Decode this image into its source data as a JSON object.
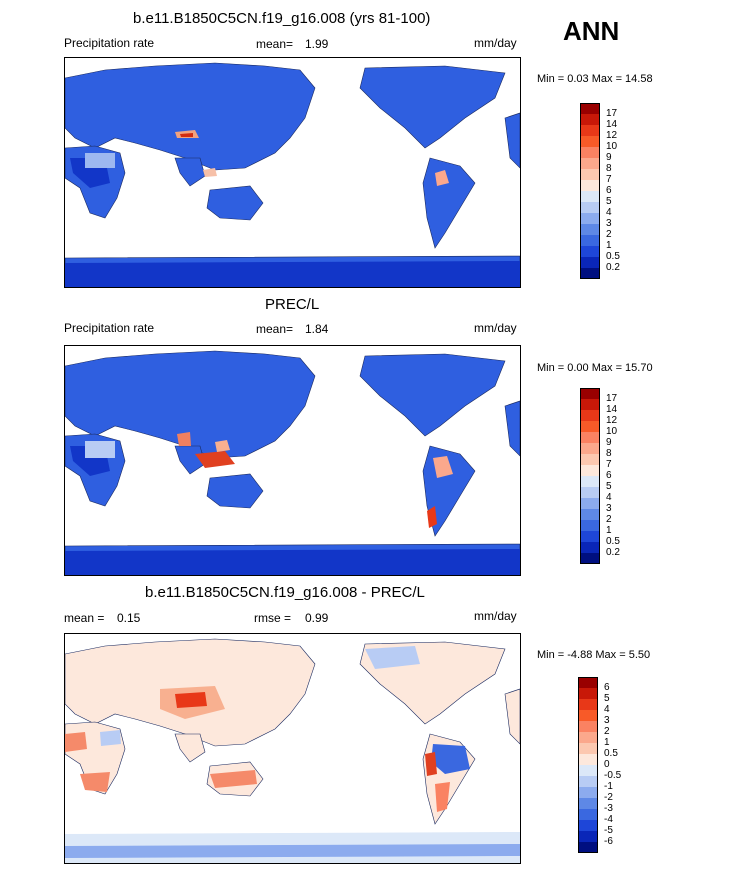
{
  "season": "ANN",
  "panels": [
    {
      "id": "model",
      "title": "b.e11.B1850C5CN.f19_g16.008 (yrs 81-100)",
      "left_label": "Precipitation rate",
      "mean_label": "mean=",
      "mean_value": "1.99",
      "units": "mm/day",
      "minmax": "Min =   0.03 Max =  14.58",
      "levels": [
        "17",
        "14",
        "12",
        "10",
        "9",
        "8",
        "7",
        "6",
        "5",
        "4",
        "3",
        "2",
        "1",
        "0.5",
        "0.2"
      ],
      "colors": [
        "#990000",
        "#c81808",
        "#e83818",
        "#f85a28",
        "#fa8262",
        "#fba88c",
        "#fcc8b0",
        "#fde8dc",
        "#dce8f8",
        "#b8ccf4",
        "#8cabee",
        "#5e88e6",
        "#3a68e0",
        "#1e46d8",
        "#0a26b8",
        "#000f80"
      ]
    },
    {
      "id": "obs",
      "title": "PREC/L",
      "left_label": "Precipitation rate",
      "mean_label": "mean=",
      "mean_value": "1.84",
      "units": "mm/day",
      "minmax": "Min =   0.00 Max =  15.70",
      "levels": [
        "17",
        "14",
        "12",
        "10",
        "9",
        "8",
        "7",
        "6",
        "5",
        "4",
        "3",
        "2",
        "1",
        "0.5",
        "0.2"
      ],
      "colors": [
        "#990000",
        "#c81808",
        "#e83818",
        "#f85a28",
        "#fa8262",
        "#fba88c",
        "#fcc8b0",
        "#fde8dc",
        "#dce8f8",
        "#b8ccf4",
        "#8cabee",
        "#5e88e6",
        "#3a68e0",
        "#1e46d8",
        "#0a26b8",
        "#000f80"
      ]
    },
    {
      "id": "diff",
      "title": "b.e11.B1850C5CN.f19_g16.008 - PREC/L",
      "left_label": "mean =",
      "left_value": "0.15",
      "rmse_label": "rmse =",
      "rmse_value": "0.99",
      "units": "mm/day",
      "minmax": "Min =  -4.88 Max =   5.50",
      "levels": [
        "6",
        "5",
        "4",
        "3",
        "2",
        "1",
        "0.5",
        "0",
        "-0.5",
        "-1",
        "-2",
        "-3",
        "-4",
        "-5",
        "-6"
      ],
      "colors": [
        "#990000",
        "#c81808",
        "#e83818",
        "#f85a28",
        "#fa8262",
        "#fba88c",
        "#fcc8b0",
        "#fde8dc",
        "#dce8f8",
        "#b8ccf4",
        "#8cabee",
        "#5e88e6",
        "#3a68e0",
        "#1e46d8",
        "#0a26b8",
        "#000f80"
      ]
    }
  ]
}
